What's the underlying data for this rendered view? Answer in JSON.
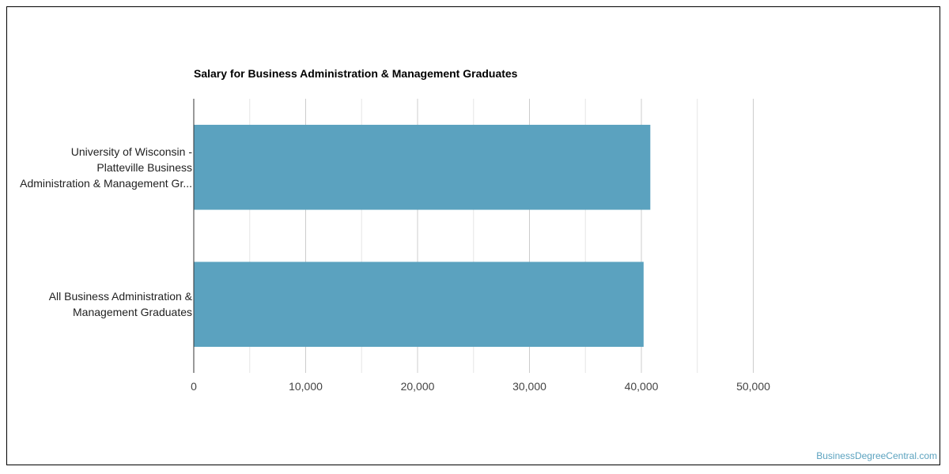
{
  "chart_data": {
    "type": "bar",
    "orientation": "horizontal",
    "title": "Salary for Business Administration & Management Graduates",
    "categories": [
      [
        "University of Wisconsin -",
        "Platteville Business",
        "Administration & Management Gr..."
      ],
      [
        "All Business Administration &",
        "Management Graduates"
      ]
    ],
    "values": [
      40800,
      40200
    ],
    "xlim": [
      0,
      50000
    ],
    "x_ticks": [
      0,
      10000,
      20000,
      30000,
      40000,
      50000
    ],
    "x_tick_labels": [
      "0",
      "10,000",
      "20,000",
      "30,000",
      "40,000",
      "50,000"
    ],
    "bar_color": "#5ba2bf",
    "grid": true,
    "legend": "none"
  },
  "watermark": "BusinessDegreeCentral.com"
}
